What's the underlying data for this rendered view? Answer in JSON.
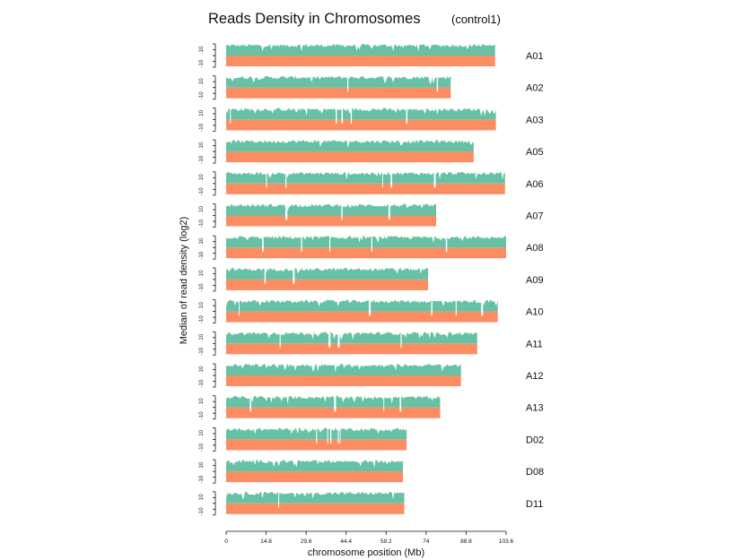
{
  "chart_data": {
    "type": "area",
    "title": "Reads Density in Chromosomes",
    "subtitle": "(control1)",
    "xlabel": "chromosome position (Mb)",
    "ylabel": "Median of read density (log2)",
    "xlim": [
      0,
      103.6
    ],
    "x_ticks": [
      "0",
      "14.8",
      "29.6",
      "44.4",
      "59.2",
      "74",
      "88.8",
      "103.6"
    ],
    "y_tick_labels": [
      "10",
      "-10"
    ],
    "series": [
      {
        "name": "control1",
        "color": "#66c2a5",
        "direction": "up"
      },
      {
        "name": "control1",
        "color": "#fc8d62",
        "direction": "down"
      }
    ],
    "chromosomes": [
      {
        "name": "A01",
        "length_mb": 99.5
      },
      {
        "name": "A02",
        "length_mb": 83.1
      },
      {
        "name": "A03",
        "length_mb": 99.8
      },
      {
        "name": "A05",
        "length_mb": 91.6
      },
      {
        "name": "A06",
        "length_mb": 103.2
      },
      {
        "name": "A07",
        "length_mb": 77.7
      },
      {
        "name": "A08",
        "length_mb": 103.6
      },
      {
        "name": "A09",
        "length_mb": 74.7
      },
      {
        "name": "A10",
        "length_mb": 100.5
      },
      {
        "name": "A11",
        "length_mb": 92.9
      },
      {
        "name": "A12",
        "length_mb": 86.9
      },
      {
        "name": "A13",
        "length_mb": 79.2
      },
      {
        "name": "D02",
        "length_mb": 66.8
      },
      {
        "name": "D08",
        "length_mb": 65.4
      },
      {
        "name": "D11",
        "length_mb": 65.9
      }
    ],
    "grid": false,
    "legend": "none"
  }
}
